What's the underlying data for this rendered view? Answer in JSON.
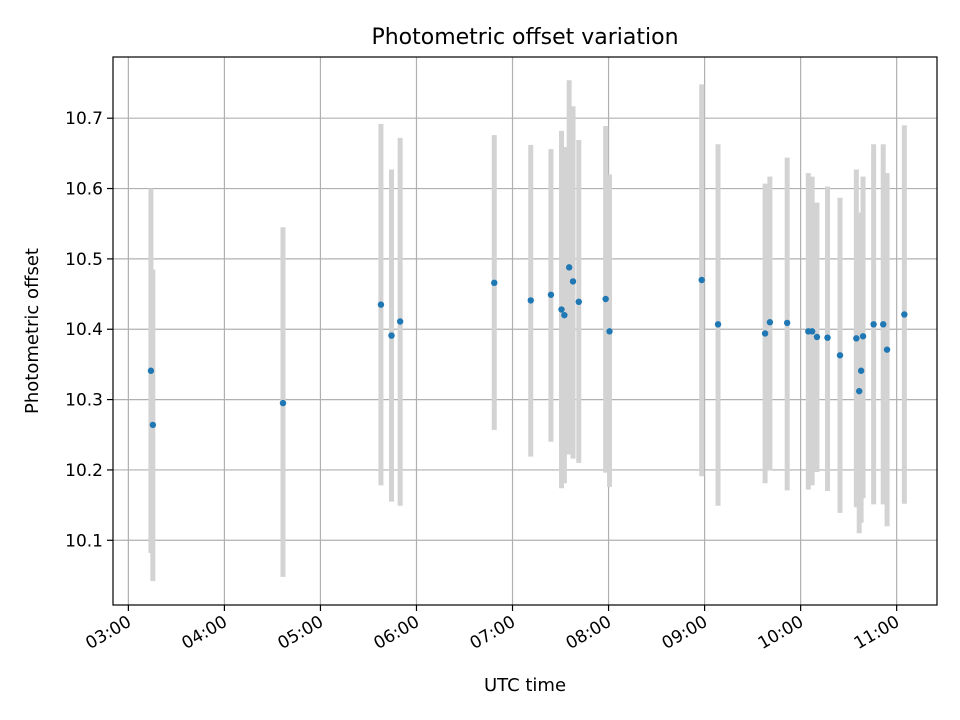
{
  "chart_data": {
    "type": "scatter",
    "title": "Photometric offset variation",
    "xlabel": "UTC time",
    "ylabel": "Photometric offset",
    "x_unit": "hours UTC",
    "xlim": [
      2.84,
      11.42
    ],
    "ylim": [
      10.008,
      10.787
    ],
    "x_ticks": [
      3,
      4,
      5,
      6,
      7,
      8,
      9,
      10,
      11
    ],
    "x_tick_labels": [
      "03:00",
      "04:00",
      "05:00",
      "06:00",
      "07:00",
      "08:00",
      "09:00",
      "10:00",
      "11:00"
    ],
    "y_ticks": [
      10.1,
      10.2,
      10.3,
      10.4,
      10.5,
      10.6,
      10.7
    ],
    "y_tick_labels": [
      "10.1",
      "10.2",
      "10.3",
      "10.4",
      "10.5",
      "10.6",
      "10.7"
    ],
    "grid": true,
    "marker_color": "#1f77b4",
    "errorbar_color": "#d3d3d3",
    "points": [
      {
        "x": 3.235,
        "y": 10.341,
        "ylow": 10.082,
        "yhigh": 10.6
      },
      {
        "x": 3.255,
        "y": 10.264,
        "ylow": 10.042,
        "yhigh": 10.485
      },
      {
        "x": 4.61,
        "y": 10.295,
        "ylow": 10.048,
        "yhigh": 10.545
      },
      {
        "x": 5.63,
        "y": 10.435,
        "ylow": 10.178,
        "yhigh": 10.692
      },
      {
        "x": 5.74,
        "y": 10.391,
        "ylow": 10.155,
        "yhigh": 10.627
      },
      {
        "x": 5.83,
        "y": 10.411,
        "ylow": 10.149,
        "yhigh": 10.672
      },
      {
        "x": 6.81,
        "y": 10.466,
        "ylow": 10.257,
        "yhigh": 10.676
      },
      {
        "x": 7.19,
        "y": 10.441,
        "ylow": 10.219,
        "yhigh": 10.662
      },
      {
        "x": 7.4,
        "y": 10.449,
        "ylow": 10.24,
        "yhigh": 10.656
      },
      {
        "x": 7.51,
        "y": 10.428,
        "ylow": 10.174,
        "yhigh": 10.682
      },
      {
        "x": 7.54,
        "y": 10.42,
        "ylow": 10.181,
        "yhigh": 10.659
      },
      {
        "x": 7.59,
        "y": 10.488,
        "ylow": 10.222,
        "yhigh": 10.754
      },
      {
        "x": 7.63,
        "y": 10.468,
        "ylow": 10.216,
        "yhigh": 10.717
      },
      {
        "x": 7.69,
        "y": 10.439,
        "ylow": 10.21,
        "yhigh": 10.669
      },
      {
        "x": 7.97,
        "y": 10.443,
        "ylow": 10.196,
        "yhigh": 10.689
      },
      {
        "x": 8.01,
        "y": 10.397,
        "ylow": 10.176,
        "yhigh": 10.62
      },
      {
        "x": 8.97,
        "y": 10.47,
        "ylow": 10.191,
        "yhigh": 10.748
      },
      {
        "x": 9.14,
        "y": 10.407,
        "ylow": 10.149,
        "yhigh": 10.663
      },
      {
        "x": 9.63,
        "y": 10.394,
        "ylow": 10.181,
        "yhigh": 10.607
      },
      {
        "x": 9.68,
        "y": 10.41,
        "ylow": 10.199,
        "yhigh": 10.617
      },
      {
        "x": 9.86,
        "y": 10.409,
        "ylow": 10.171,
        "yhigh": 10.644
      },
      {
        "x": 10.08,
        "y": 10.397,
        "ylow": 10.172,
        "yhigh": 10.622
      },
      {
        "x": 10.12,
        "y": 10.397,
        "ylow": 10.178,
        "yhigh": 10.617
      },
      {
        "x": 10.17,
        "y": 10.389,
        "ylow": 10.197,
        "yhigh": 10.58
      },
      {
        "x": 10.28,
        "y": 10.388,
        "ylow": 10.17,
        "yhigh": 10.603
      },
      {
        "x": 10.41,
        "y": 10.363,
        "ylow": 10.139,
        "yhigh": 10.587
      },
      {
        "x": 10.58,
        "y": 10.387,
        "ylow": 10.147,
        "yhigh": 10.627
      },
      {
        "x": 10.61,
        "y": 10.312,
        "ylow": 10.11,
        "yhigh": 10.555
      },
      {
        "x": 10.63,
        "y": 10.341,
        "ylow": 10.125,
        "yhigh": 10.566
      },
      {
        "x": 10.65,
        "y": 10.39,
        "ylow": 10.16,
        "yhigh": 10.617
      },
      {
        "x": 10.76,
        "y": 10.407,
        "ylow": 10.151,
        "yhigh": 10.663
      },
      {
        "x": 10.86,
        "y": 10.407,
        "ylow": 10.151,
        "yhigh": 10.663
      },
      {
        "x": 10.9,
        "y": 10.371,
        "ylow": 10.12,
        "yhigh": 10.622
      },
      {
        "x": 11.08,
        "y": 10.421,
        "ylow": 10.152,
        "yhigh": 10.69
      }
    ]
  }
}
